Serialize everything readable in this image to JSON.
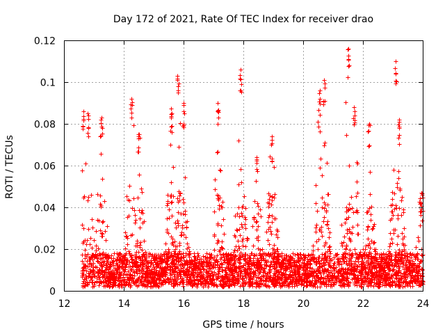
{
  "chart_data": {
    "type": "scatter",
    "title": "Day 172 of 2021, Rate Of TEC Index for receiver drao",
    "xlabel": "GPS time / hours",
    "ylabel": "ROTI / TECUs",
    "xlim": [
      12,
      24
    ],
    "ylim": [
      0,
      0.12
    ],
    "x_ticks": [
      12,
      14,
      16,
      18,
      20,
      22,
      24
    ],
    "x_tick_labels": [
      "12",
      "14",
      "16",
      "18",
      "20",
      "22",
      "24"
    ],
    "y_ticks": [
      0,
      0.02,
      0.04,
      0.06,
      0.08,
      0.1,
      0.12
    ],
    "y_tick_labels": [
      "0",
      "0.02",
      "0.04",
      "0.06",
      "0.08",
      "0.1",
      "0.12"
    ],
    "grid": true,
    "marker": "plus",
    "color": "#ff0000",
    "x_data_range": [
      12.6,
      24
    ],
    "notable_peaks": [
      {
        "x": 12.65,
        "y": 0.086
      },
      {
        "x": 12.8,
        "y": 0.085
      },
      {
        "x": 13.25,
        "y": 0.083
      },
      {
        "x": 14.25,
        "y": 0.092
      },
      {
        "x": 14.5,
        "y": 0.075
      },
      {
        "x": 15.6,
        "y": 0.085
      },
      {
        "x": 15.8,
        "y": 0.103
      },
      {
        "x": 16.0,
        "y": 0.09
      },
      {
        "x": 17.15,
        "y": 0.09
      },
      {
        "x": 17.9,
        "y": 0.106
      },
      {
        "x": 18.45,
        "y": 0.064
      },
      {
        "x": 18.95,
        "y": 0.074
      },
      {
        "x": 20.7,
        "y": 0.101
      },
      {
        "x": 20.55,
        "y": 0.096
      },
      {
        "x": 21.5,
        "y": 0.116
      },
      {
        "x": 21.7,
        "y": 0.088
      },
      {
        "x": 22.2,
        "y": 0.08
      },
      {
        "x": 23.1,
        "y": 0.11
      },
      {
        "x": 23.2,
        "y": 0.082
      },
      {
        "x": 23.95,
        "y": 0.047
      }
    ]
  }
}
